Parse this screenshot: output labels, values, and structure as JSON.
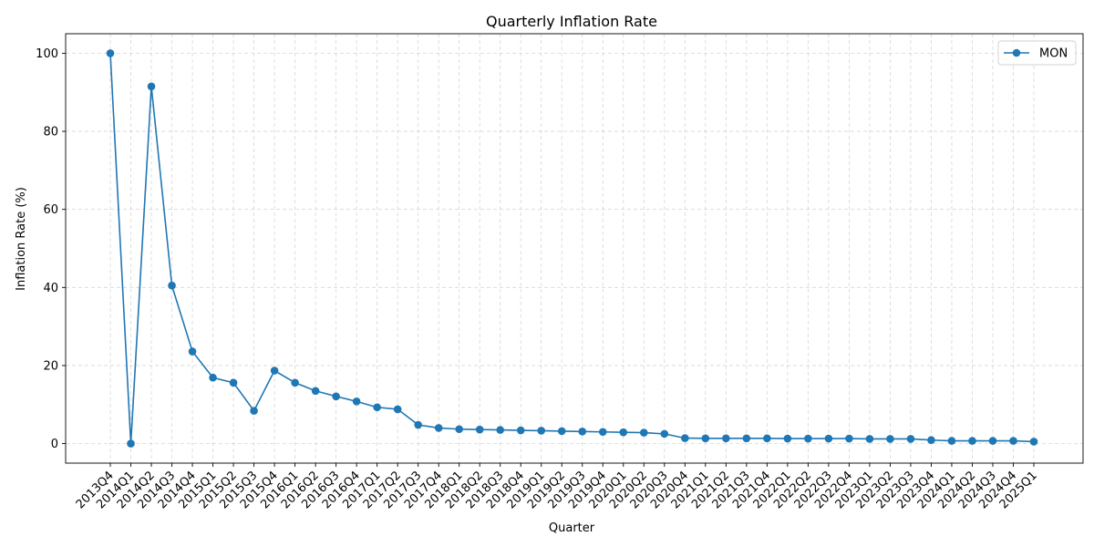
{
  "chart_data": {
    "type": "line",
    "title": "Quarterly Inflation Rate",
    "xlabel": "Quarter",
    "ylabel": "Inflation Rate (%)",
    "ylim": [
      -5,
      105
    ],
    "yticks": [
      0,
      20,
      40,
      60,
      80,
      100
    ],
    "grid": true,
    "legend_position": "top-right",
    "categories": [
      "2013Q4",
      "2014Q1",
      "2014Q2",
      "2014Q3",
      "2014Q4",
      "2015Q1",
      "2015Q2",
      "2015Q3",
      "2015Q4",
      "2016Q1",
      "2016Q2",
      "2016Q3",
      "2016Q4",
      "2017Q1",
      "2017Q2",
      "2017Q3",
      "2017Q4",
      "2018Q1",
      "2018Q2",
      "2018Q3",
      "2018Q4",
      "2019Q1",
      "2019Q2",
      "2019Q3",
      "2019Q4",
      "2020Q1",
      "2020Q2",
      "2020Q3",
      "2020Q4",
      "2021Q1",
      "2021Q2",
      "2021Q3",
      "2021Q4",
      "2022Q1",
      "2022Q2",
      "2022Q3",
      "2022Q4",
      "2023Q1",
      "2023Q2",
      "2023Q3",
      "2023Q4",
      "2024Q1",
      "2024Q2",
      "2024Q3",
      "2024Q4",
      "2025Q1"
    ],
    "series": [
      {
        "name": "MON",
        "color": "#1f77b4",
        "values": [
          100.0,
          0.0,
          91.5,
          40.5,
          23.6,
          16.9,
          15.6,
          8.4,
          18.7,
          15.6,
          13.5,
          12.1,
          10.8,
          9.3,
          8.8,
          4.8,
          4.0,
          3.7,
          3.6,
          3.5,
          3.4,
          3.3,
          3.2,
          3.1,
          3.0,
          2.9,
          2.8,
          2.5,
          1.4,
          1.35,
          1.35,
          1.35,
          1.35,
          1.3,
          1.3,
          1.3,
          1.3,
          1.2,
          1.2,
          1.2,
          0.9,
          0.7,
          0.7,
          0.7,
          0.7,
          0.5
        ]
      }
    ]
  }
}
